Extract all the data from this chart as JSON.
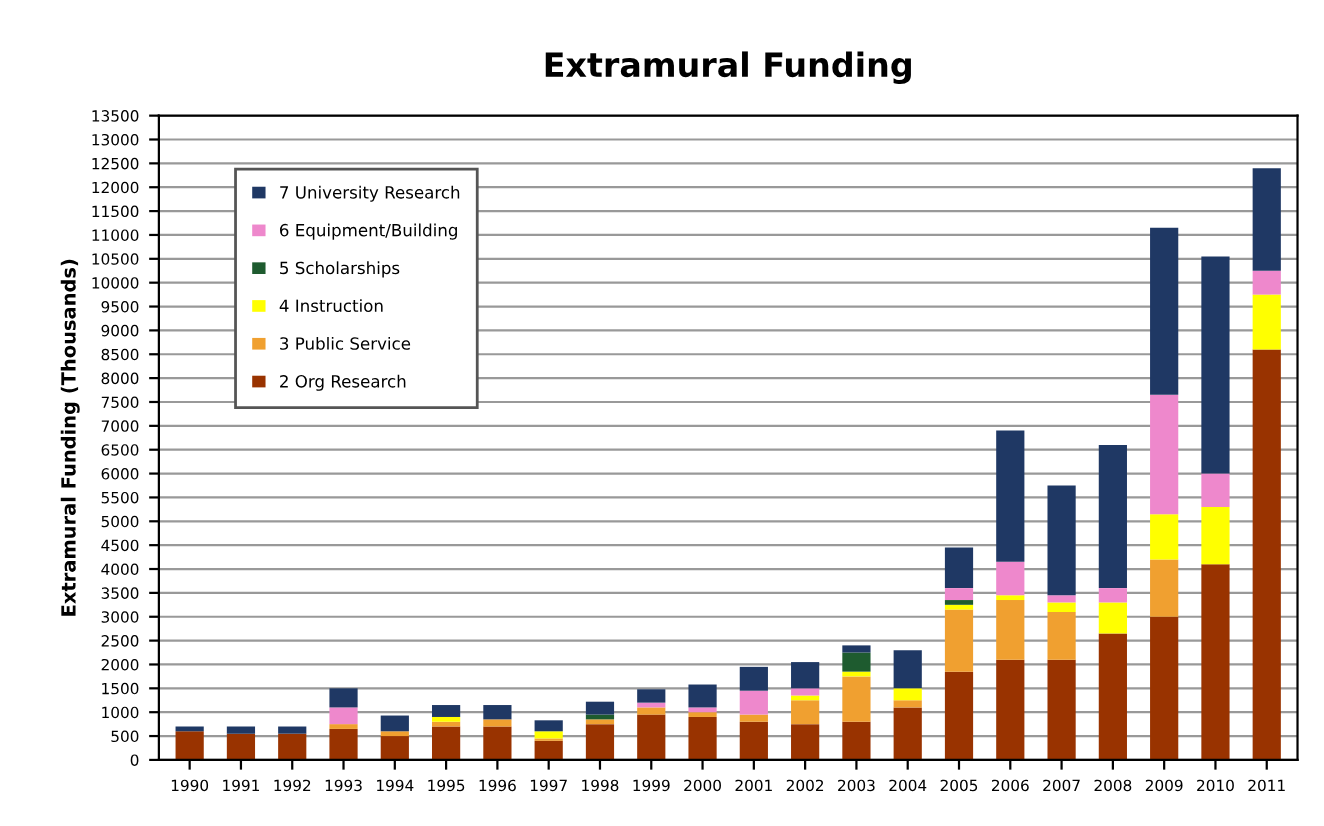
{
  "chart_data": {
    "type": "bar",
    "stacked": true,
    "title": "Extramural Funding",
    "ylabel": "Extramural Funding (Thousands)",
    "categories": [
      "1990",
      "1991",
      "1992",
      "1993",
      "1994",
      "1995",
      "1996",
      "1997",
      "1998",
      "1999",
      "2000",
      "2001",
      "2002",
      "2003",
      "2004",
      "2005",
      "2006",
      "2007",
      "2008",
      "2009",
      "2010",
      "2011"
    ],
    "series": [
      {
        "name": "2 Org Research",
        "color": "#993300",
        "values": [
          600,
          550,
          550,
          650,
          500,
          700,
          700,
          400,
          750,
          950,
          900,
          800,
          750,
          800,
          1100,
          1850,
          2100,
          2100,
          2650,
          3000,
          4100,
          8600
        ]
      },
      {
        "name": "3 Public Service",
        "color": "#f0a030",
        "values": [
          0,
          0,
          0,
          100,
          100,
          100,
          150,
          50,
          100,
          150,
          100,
          150,
          500,
          950,
          150,
          1300,
          1250,
          1000,
          0,
          1200,
          0,
          0
        ]
      },
      {
        "name": "4 Instruction",
        "color": "#ffff00",
        "values": [
          0,
          0,
          0,
          0,
          0,
          100,
          0,
          150,
          0,
          0,
          0,
          0,
          100,
          100,
          250,
          100,
          100,
          200,
          650,
          950,
          1200,
          1150
        ]
      },
      {
        "name": "5 Scholarships",
        "color": "#1e5b2f",
        "values": [
          0,
          0,
          0,
          0,
          0,
          0,
          0,
          0,
          100,
          0,
          0,
          0,
          0,
          400,
          0,
          100,
          0,
          0,
          0,
          0,
          0,
          0
        ]
      },
      {
        "name": "6 Equipment/Building",
        "color": "#ee88cc",
        "values": [
          0,
          0,
          0,
          350,
          0,
          0,
          0,
          0,
          0,
          100,
          100,
          500,
          150,
          0,
          0,
          250,
          700,
          150,
          300,
          2500,
          700,
          500
        ]
      },
      {
        "name": "7 University Research",
        "color": "#1f3864",
        "values": [
          100,
          150,
          150,
          400,
          330,
          250,
          300,
          230,
          270,
          280,
          480,
          500,
          550,
          150,
          800,
          850,
          2750,
          2300,
          3000,
          3500,
          4550,
          2150
        ]
      }
    ],
    "ylim": [
      0,
      13500
    ],
    "yticks": [
      0,
      500,
      1000,
      1500,
      2000,
      2500,
      3000,
      3500,
      4000,
      4500,
      5000,
      5500,
      6000,
      6500,
      7000,
      7500,
      8000,
      8500,
      9000,
      9500,
      10000,
      10500,
      11000,
      11500,
      12000,
      12500,
      13000,
      13500
    ],
    "grid": "y",
    "legend": "top left"
  }
}
